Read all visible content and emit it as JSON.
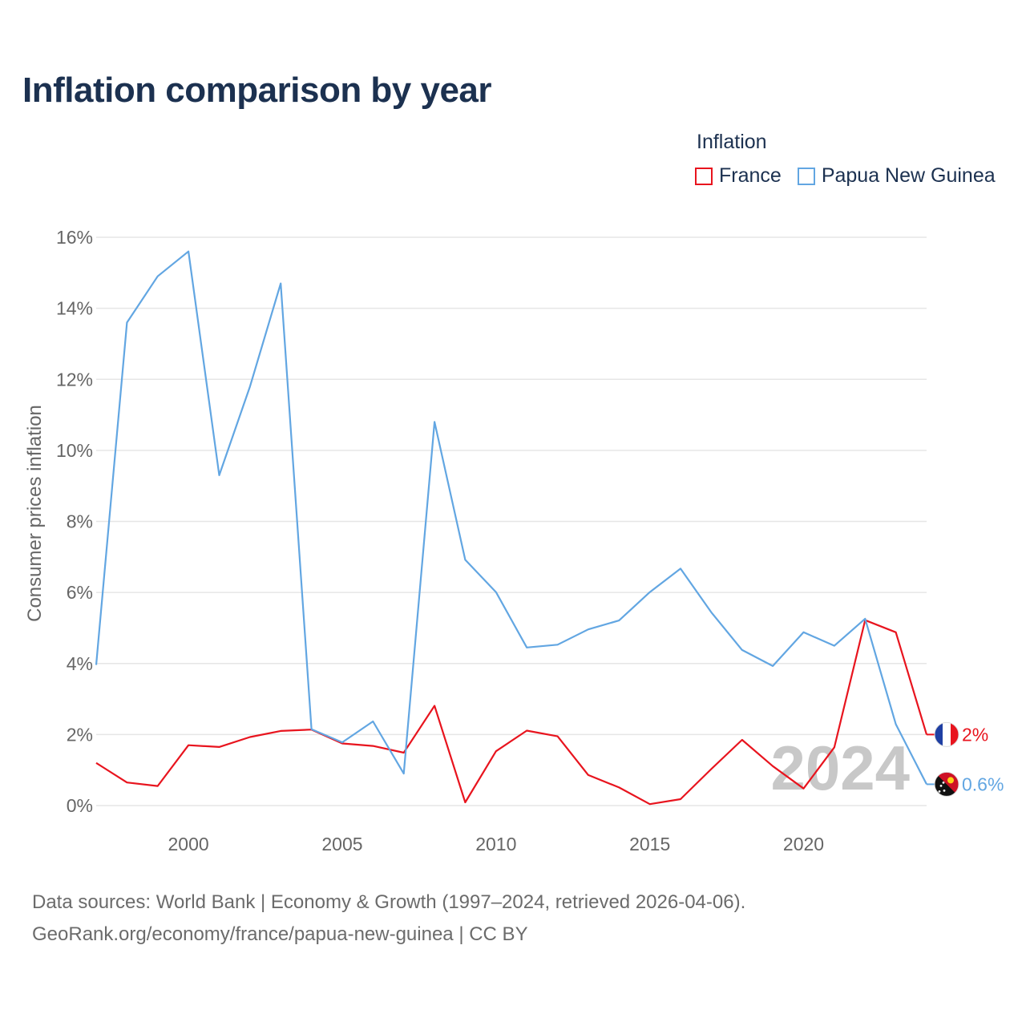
{
  "title": "Inflation comparison by year",
  "legend": {
    "title": "Inflation",
    "items": [
      {
        "label": "France",
        "color": "#e8141e"
      },
      {
        "label": "Papua New Guinea",
        "color": "#62a6e2"
      }
    ]
  },
  "source": {
    "line1": "Data sources: World Bank | Economy & Growth (1997–2024, retrieved 2026-04-06).",
    "line2": "GeoRank.org/economy/france/papua-new-guinea | CC BY"
  },
  "chart_data": {
    "type": "line",
    "ylabel": "Consumer prices inflation",
    "xlabel": "",
    "ylim": [
      0,
      16
    ],
    "xlim": [
      1997,
      2024
    ],
    "yticks": [
      0,
      2,
      4,
      6,
      8,
      10,
      12,
      14,
      16
    ],
    "ytick_labels": [
      "0%",
      "2%",
      "4%",
      "6%",
      "8%",
      "10%",
      "12%",
      "14%",
      "16%"
    ],
    "xticks": [
      2000,
      2005,
      2010,
      2015,
      2020
    ],
    "xtick_labels": [
      "2000",
      "2005",
      "2010",
      "2015",
      "2020"
    ],
    "grid": true,
    "watermark_year": "2024",
    "x": [
      1997,
      1998,
      1999,
      2000,
      2001,
      2002,
      2003,
      2004,
      2005,
      2006,
      2007,
      2008,
      2009,
      2010,
      2011,
      2012,
      2013,
      2014,
      2015,
      2016,
      2017,
      2018,
      2019,
      2020,
      2021,
      2022,
      2023,
      2024
    ],
    "series": [
      {
        "name": "France",
        "color": "#e8141e",
        "end_label": "2%",
        "values": [
          1.2,
          0.65,
          0.55,
          1.7,
          1.65,
          1.93,
          2.1,
          2.14,
          1.75,
          1.68,
          1.49,
          2.81,
          0.09,
          1.53,
          2.11,
          1.95,
          0.86,
          0.51,
          0.04,
          0.18,
          1.03,
          1.85,
          1.11,
          0.48,
          1.64,
          5.22,
          4.88,
          2.0
        ]
      },
      {
        "name": "Papua New Guinea",
        "color": "#62a6e2",
        "end_label": "0.6%",
        "values": [
          3.96,
          13.6,
          14.9,
          15.6,
          9.3,
          11.8,
          14.7,
          2.15,
          1.78,
          2.37,
          0.9,
          10.8,
          6.92,
          6.01,
          4.45,
          4.53,
          4.96,
          5.21,
          6.01,
          6.67,
          5.44,
          4.38,
          3.93,
          4.88,
          4.5,
          5.26,
          2.29,
          0.6
        ]
      }
    ]
  }
}
